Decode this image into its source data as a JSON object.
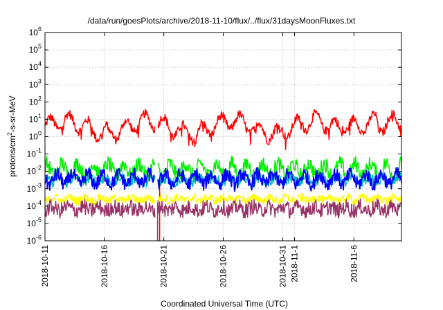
{
  "chart_data": {
    "type": "line",
    "title": "/data/run/goesPlots/archive/2018-11-10/flux/../flux/31daysMoonFluxes.txt",
    "xlabel": "Coordinated Universal Time (UTC)",
    "ylabel_prefix": "protons/cm",
    "ylabel_sup": "2",
    "ylabel_suffix": "-s-sr-MeV",
    "yscale": "log",
    "ylim_exp": [
      -6,
      6
    ],
    "xlim": [
      "2018-10-11",
      "2018-11-10"
    ],
    "grid": true,
    "ytick_exponents": [
      -6,
      -5,
      -4,
      -3,
      -2,
      -1,
      0,
      1,
      2,
      3,
      4,
      5,
      6
    ],
    "xticks": [
      "2018-10-11",
      "2018-10-16",
      "2018-10-21",
      "2018-10-26",
      "2018-10-31",
      "2018-11-1",
      "2018-11-6"
    ],
    "xtick_days": [
      0,
      5,
      10,
      15,
      20,
      21,
      26
    ],
    "data_gap": {
      "start_day": 9.3,
      "end_day": 9.45
    },
    "series": [
      {
        "color": "#ff0000",
        "width": 1.5,
        "base": 0.55,
        "amp": 0.45,
        "noise": 0.25,
        "cycle_days": 1.6,
        "points": [
          [
            "2018-10-11",
            10
          ],
          [
            "2018-10-11.5",
            20
          ],
          [
            "2018-10-12",
            3
          ],
          [
            "2018-10-13",
            25
          ],
          [
            "2018-10-14",
            40
          ],
          [
            "2018-10-15",
            0.4
          ],
          [
            "2018-10-16",
            4
          ],
          [
            "2018-10-20",
            0.2
          ],
          [
            "2018-10-21",
            8
          ],
          [
            "2018-10-28",
            0.3
          ],
          [
            "2018-11-2",
            0.3
          ],
          [
            "2018-11-6",
            30
          ],
          [
            "2018-11-8",
            30
          ],
          [
            "2018-11-9",
            0.3
          ],
          [
            "2018-11-10",
            2
          ]
        ]
      },
      {
        "color": "#00ee00",
        "width": 1.5,
        "base": -1.9,
        "amp": 0.35,
        "noise": 0.45
      },
      {
        "color": "#00bbbb",
        "width": 1.5,
        "base": -2.5,
        "amp": 0.15,
        "noise": 0.3
      },
      {
        "color": "#0000ff",
        "width": 1.8,
        "base": -2.45,
        "amp": 0.3,
        "noise": 0.4
      },
      {
        "color": "#ffff00",
        "width": 1.5,
        "base": -3.6,
        "amp": 0.1,
        "noise": 0.25
      },
      {
        "color": "#993366",
        "width": 1.5,
        "base": -4.15,
        "amp": 0.12,
        "noise": 0.45
      }
    ]
  }
}
